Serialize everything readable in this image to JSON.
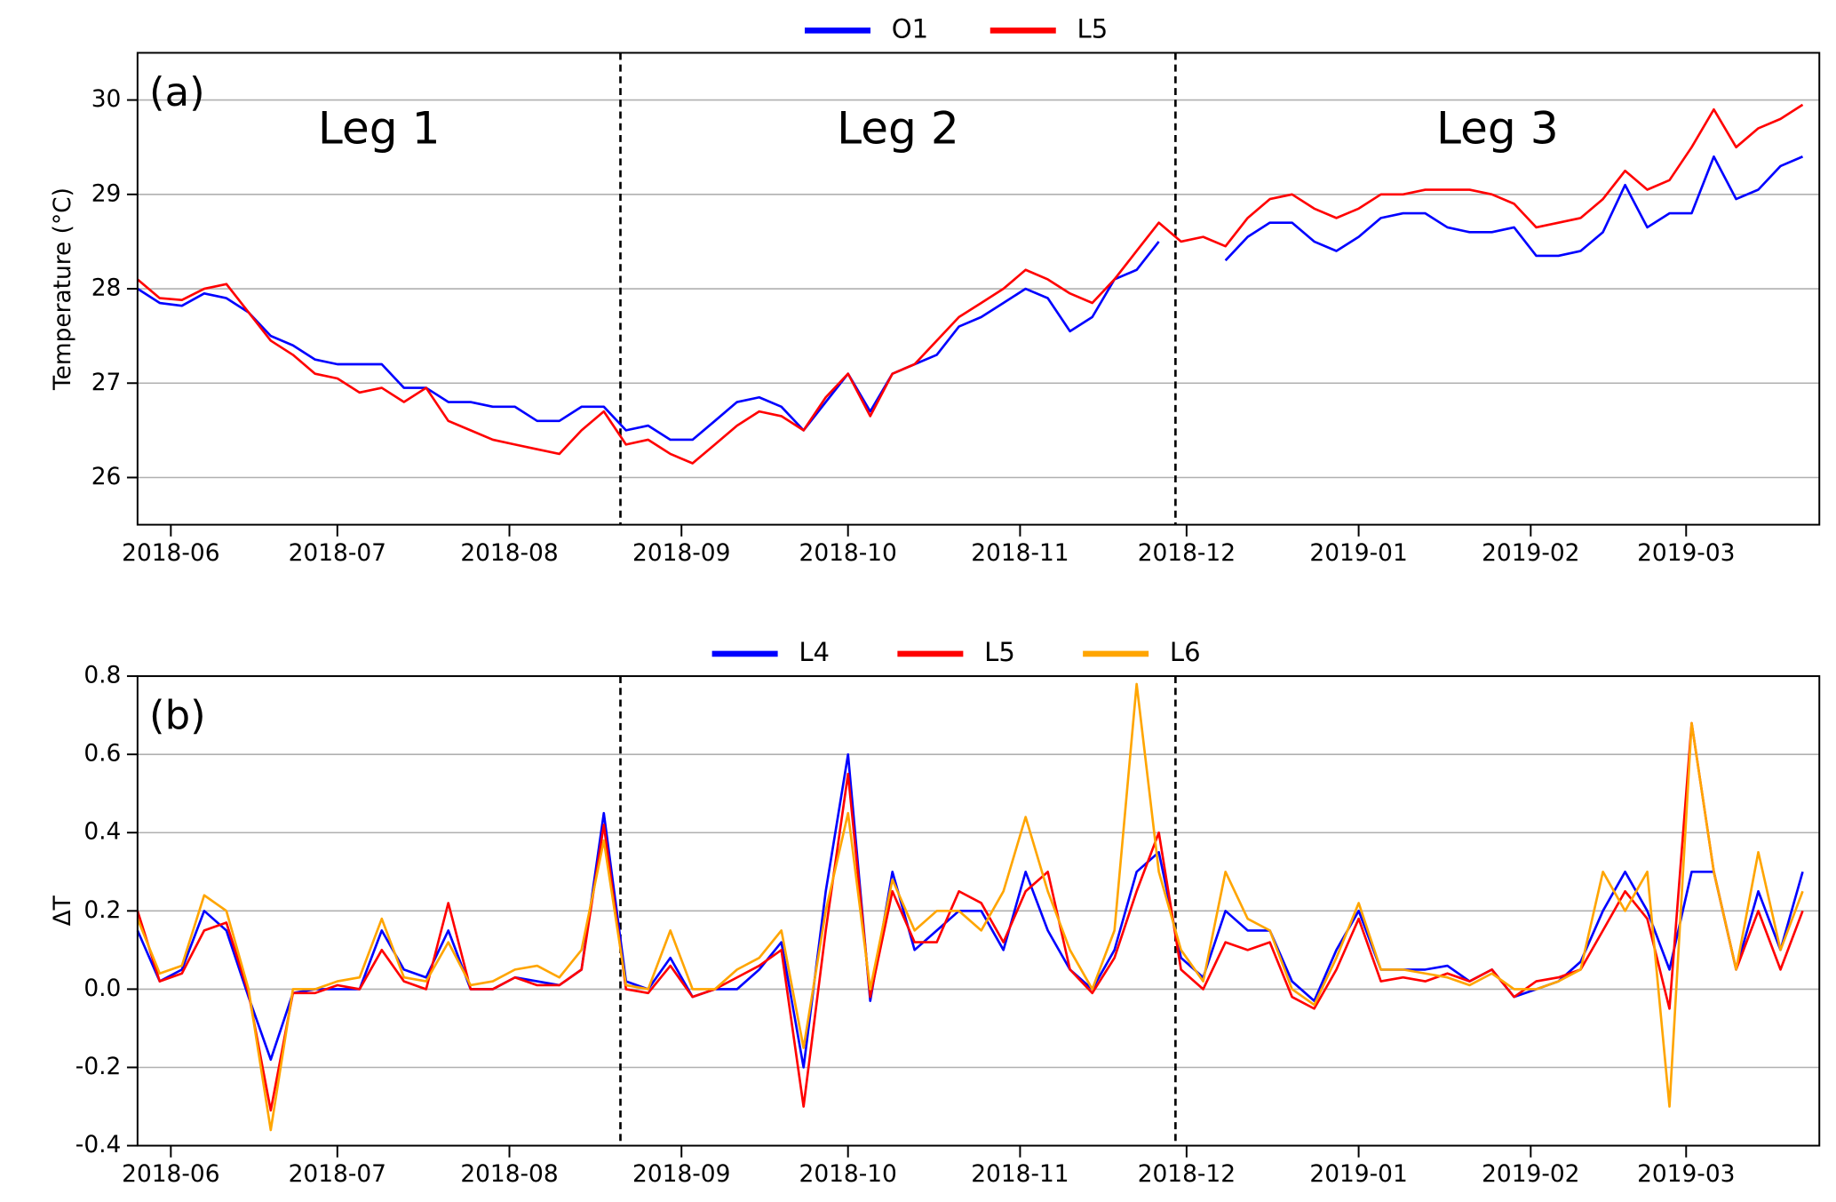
{
  "chart_data": [
    {
      "type": "line",
      "panel_label": "(a)",
      "ylabel": "Temperature (°C)",
      "annotations": [
        "Leg 1",
        "Leg 2",
        "Leg 3"
      ],
      "vlines": [
        81,
        181
      ],
      "x": [
        -6,
        -2,
        2,
        6,
        10,
        14,
        18,
        22,
        26,
        30,
        34,
        38,
        42,
        46,
        50,
        54,
        58,
        62,
        66,
        70,
        74,
        78,
        82,
        86,
        90,
        94,
        98,
        102,
        106,
        110,
        114,
        118,
        122,
        126,
        130,
        134,
        138,
        142,
        146,
        150,
        154,
        158,
        162,
        166,
        170,
        174,
        178,
        182,
        186,
        190,
        194,
        198,
        202,
        206,
        210,
        214,
        218,
        222,
        226,
        230,
        234,
        238,
        242,
        246,
        250,
        254,
        258,
        262,
        266,
        270,
        274,
        278,
        282,
        286,
        290,
        294
      ],
      "series": [
        {
          "name": "O1",
          "color": "#0000ff",
          "values": [
            28.0,
            27.85,
            27.82,
            27.95,
            27.9,
            27.75,
            27.5,
            27.4,
            27.25,
            27.2,
            27.2,
            27.2,
            26.95,
            26.95,
            26.8,
            26.8,
            26.75,
            26.75,
            26.6,
            26.6,
            26.75,
            26.75,
            26.5,
            26.55,
            26.4,
            26.4,
            26.6,
            26.8,
            26.85,
            26.75,
            26.5,
            26.8,
            27.1,
            26.7,
            27.1,
            27.2,
            27.3,
            27.6,
            27.7,
            27.85,
            28.0,
            27.9,
            27.55,
            27.7,
            28.1,
            28.2,
            28.5,
            null,
            null,
            28.3,
            28.55,
            28.7,
            28.7,
            28.5,
            28.4,
            28.55,
            28.75,
            28.8,
            28.8,
            28.65,
            28.6,
            28.6,
            28.65,
            28.35,
            28.35,
            28.4,
            28.6,
            29.1,
            28.65,
            28.8,
            28.8,
            29.4,
            28.95,
            29.05,
            29.3,
            29.4
          ]
        },
        {
          "name": "L5",
          "color": "#ff0000",
          "values": [
            28.1,
            27.9,
            27.88,
            28.0,
            28.05,
            27.75,
            27.45,
            27.3,
            27.1,
            27.05,
            26.9,
            26.95,
            26.8,
            26.95,
            26.6,
            26.5,
            26.4,
            26.35,
            26.3,
            26.25,
            26.5,
            26.7,
            26.35,
            26.4,
            26.25,
            26.15,
            26.35,
            26.55,
            26.7,
            26.65,
            26.5,
            26.85,
            27.1,
            26.65,
            27.1,
            27.2,
            27.45,
            27.7,
            27.85,
            28.0,
            28.2,
            28.1,
            27.95,
            27.85,
            28.1,
            28.4,
            28.7,
            28.5,
            28.55,
            28.45,
            28.75,
            28.95,
            29.0,
            28.85,
            28.75,
            28.85,
            29.0,
            29.0,
            29.05,
            29.05,
            29.05,
            29.0,
            28.9,
            28.65,
            28.7,
            28.75,
            28.95,
            29.25,
            29.05,
            29.15,
            29.5,
            29.9,
            29.5,
            29.7,
            29.8,
            29.95
          ]
        }
      ],
      "xlim": [
        -6,
        297
      ],
      "ylim": [
        25.5,
        30.5
      ],
      "xticks": [
        {
          "value": 0,
          "label": "2018-06"
        },
        {
          "value": 30,
          "label": "2018-07"
        },
        {
          "value": 61,
          "label": "2018-08"
        },
        {
          "value": 92,
          "label": "2018-09"
        },
        {
          "value": 122,
          "label": "2018-10"
        },
        {
          "value": 153,
          "label": "2018-11"
        },
        {
          "value": 183,
          "label": "2018-12"
        },
        {
          "value": 214,
          "label": "2019-01"
        },
        {
          "value": 245,
          "label": "2019-02"
        },
        {
          "value": 273,
          "label": "2019-03"
        }
      ],
      "yticks": [
        26,
        27,
        28,
        29,
        30
      ],
      "grid": true
    },
    {
      "type": "line",
      "panel_label": "(b)",
      "ylabel": "ΔT",
      "vlines": [
        81,
        181
      ],
      "x": [
        -6,
        -2,
        2,
        6,
        10,
        14,
        18,
        22,
        26,
        30,
        34,
        38,
        42,
        46,
        50,
        54,
        58,
        62,
        66,
        70,
        74,
        78,
        82,
        86,
        90,
        94,
        98,
        102,
        106,
        110,
        114,
        118,
        122,
        126,
        130,
        134,
        138,
        142,
        146,
        150,
        154,
        158,
        162,
        166,
        170,
        174,
        178,
        182,
        186,
        190,
        194,
        198,
        202,
        206,
        210,
        214,
        218,
        222,
        226,
        230,
        234,
        238,
        242,
        246,
        250,
        254,
        258,
        262,
        266,
        270,
        274,
        278,
        282,
        286,
        290,
        294
      ],
      "series": [
        {
          "name": "L4",
          "color": "#0000ff",
          "values": [
            0.15,
            0.02,
            0.05,
            0.2,
            0.15,
            -0.02,
            -0.18,
            -0.01,
            0.0,
            0.0,
            0.0,
            0.15,
            0.05,
            0.03,
            0.15,
            0.0,
            0.0,
            0.03,
            0.02,
            0.01,
            0.05,
            0.45,
            0.02,
            0.0,
            0.08,
            -0.02,
            0.0,
            0.0,
            0.05,
            0.12,
            -0.2,
            0.25,
            0.6,
            -0.03,
            0.3,
            0.1,
            0.15,
            0.2,
            0.2,
            0.1,
            0.3,
            0.15,
            0.05,
            0.0,
            0.1,
            0.3,
            0.35,
            0.08,
            0.03,
            0.2,
            0.15,
            0.15,
            0.02,
            -0.03,
            0.1,
            0.2,
            0.05,
            0.05,
            0.05,
            0.06,
            0.02,
            0.05,
            -0.02,
            0.0,
            0.02,
            0.07,
            0.2,
            0.3,
            0.2,
            0.05,
            0.3,
            0.3,
            0.05,
            0.25,
            0.1,
            0.3
          ]
        },
        {
          "name": "L5",
          "color": "#ff0000",
          "values": [
            0.2,
            0.02,
            0.04,
            0.15,
            0.17,
            -0.01,
            -0.31,
            -0.01,
            -0.01,
            0.01,
            0.0,
            0.1,
            0.02,
            0.0,
            0.22,
            0.0,
            0.0,
            0.03,
            0.01,
            0.01,
            0.05,
            0.42,
            0.0,
            -0.01,
            0.06,
            -0.02,
            0.0,
            0.03,
            0.06,
            0.1,
            -0.3,
            0.15,
            0.55,
            -0.02,
            0.25,
            0.12,
            0.12,
            0.25,
            0.22,
            0.12,
            0.25,
            0.3,
            0.05,
            -0.01,
            0.08,
            0.25,
            0.4,
            0.05,
            0.0,
            0.12,
            0.1,
            0.12,
            -0.02,
            -0.05,
            0.05,
            0.18,
            0.02,
            0.03,
            0.02,
            0.04,
            0.02,
            0.05,
            -0.02,
            0.02,
            0.03,
            0.05,
            0.15,
            0.25,
            0.18,
            -0.05,
            0.68,
            0.3,
            0.05,
            0.2,
            0.05,
            0.2
          ]
        },
        {
          "name": "L6",
          "color": "#ffa500",
          "values": [
            0.18,
            0.04,
            0.06,
            0.24,
            0.2,
            0.0,
            -0.36,
            0.0,
            0.0,
            0.02,
            0.03,
            0.18,
            0.03,
            0.02,
            0.12,
            0.01,
            0.02,
            0.05,
            0.06,
            0.03,
            0.1,
            0.38,
            0.01,
            0.0,
            0.15,
            0.0,
            0.0,
            0.05,
            0.08,
            0.15,
            -0.15,
            0.2,
            0.45,
            0.0,
            0.28,
            0.15,
            0.2,
            0.2,
            0.15,
            0.25,
            0.44,
            0.25,
            0.1,
            0.0,
            0.15,
            0.78,
            0.3,
            0.1,
            0.02,
            0.3,
            0.18,
            0.15,
            0.0,
            -0.04,
            0.08,
            0.22,
            0.05,
            0.05,
            0.04,
            0.03,
            0.01,
            0.04,
            0.0,
            0.0,
            0.02,
            0.05,
            0.3,
            0.2,
            0.3,
            -0.3,
            0.68,
            0.3,
            0.05,
            0.35,
            0.1,
            0.25
          ]
        }
      ],
      "xlim": [
        -6,
        297
      ],
      "ylim": [
        -0.4,
        0.8
      ],
      "xticks": [
        {
          "value": 0,
          "label": "2018-06"
        },
        {
          "value": 30,
          "label": "2018-07"
        },
        {
          "value": 61,
          "label": "2018-08"
        },
        {
          "value": 92,
          "label": "2018-09"
        },
        {
          "value": 122,
          "label": "2018-10"
        },
        {
          "value": 153,
          "label": "2018-11"
        },
        {
          "value": 183,
          "label": "2018-12"
        },
        {
          "value": 214,
          "label": "2019-01"
        },
        {
          "value": 245,
          "label": "2019-02"
        },
        {
          "value": 273,
          "label": "2019-03"
        }
      ],
      "yticks": [
        -0.4,
        -0.2,
        {
          "value": 0,
          "label": "0.0"
        },
        0.2,
        0.4,
        0.6,
        0.8
      ],
      "grid": true
    }
  ]
}
